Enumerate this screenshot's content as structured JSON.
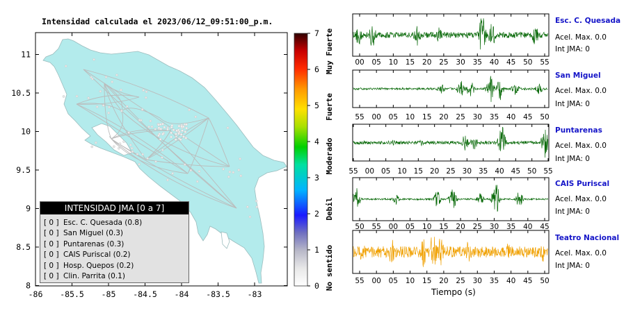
{
  "map": {
    "title": "Intensidad calculada el 2023/06/12_09:51:00_p.m.",
    "x_ticks": [
      "-86",
      "-85.5",
      "-85",
      "-84.5",
      "-84",
      "-83.5",
      "-83"
    ],
    "y_ticks": [
      "11",
      "10.5",
      "10",
      "9.5",
      "9",
      "8.5",
      "8"
    ],
    "land_color": "#b3ebec",
    "road_color": "#bbbbbb"
  },
  "colorbar": {
    "ticks": [
      "0",
      "1",
      "2",
      "3",
      "4",
      "5",
      "6",
      "7"
    ],
    "labels": [
      "No sentido",
      "Debil",
      "Moderado",
      "Fuerte",
      "Muy Fuerte"
    ]
  },
  "legend": {
    "title": "INTENSIDAD JMA [0 a 7]",
    "rows": [
      {
        "level": "[ 0 ]",
        "text": "Esc. C. Quesada (0.8)"
      },
      {
        "level": "[ 0 ]",
        "text": "San Miguel (0.3)"
      },
      {
        "level": "[ 0 ]",
        "text": "Puntarenas (0.3)"
      },
      {
        "level": "[ 0 ]",
        "text": "CAIS Puriscal (0.2)"
      },
      {
        "level": "[ 0 ]",
        "text": "Hosp. Quepos (0.2)"
      },
      {
        "level": "[ 0 ]",
        "text": "Clin. Parrita (0.1)"
      }
    ]
  },
  "stations": [
    {
      "name": "Esc. C. Quesada",
      "accel": "Acel. Max. 0.0",
      "jma": "Int JMA: 0",
      "ticks": [
        "00",
        "05",
        "10",
        "15",
        "20",
        "25",
        "30",
        "35",
        "40",
        "45",
        "50",
        "55"
      ],
      "color": "#0a6a0a"
    },
    {
      "name": "San Miguel",
      "accel": "Acel. Max. 0.0",
      "jma": "Int JMA: 0",
      "ticks": [
        "55",
        "00",
        "05",
        "10",
        "15",
        "20",
        "25",
        "30",
        "35",
        "40",
        "45",
        "50"
      ],
      "color": "#0a6a0a"
    },
    {
      "name": "Puntarenas",
      "accel": "Acel. Max. 0.0",
      "jma": "Int JMA: 0",
      "ticks": [
        "55",
        "00",
        "05",
        "10",
        "15",
        "20",
        "25",
        "30",
        "35",
        "40",
        "45",
        "50",
        "55"
      ],
      "color": "#0a6a0a"
    },
    {
      "name": "CAIS Puriscal",
      "accel": "Acel. Max. 0.0",
      "jma": "Int JMA: 0",
      "ticks": [
        "50",
        "55",
        "00",
        "05",
        "10",
        "15",
        "20",
        "25",
        "30",
        "35",
        "40",
        "45"
      ],
      "color": "#0a6a0a"
    },
    {
      "name": "Teatro Nacional",
      "accel": "Acel. Max. 0.0",
      "jma": "Int JMA: 0",
      "ticks": [
        "55",
        "00",
        "05",
        "10",
        "15",
        "20",
        "25",
        "30",
        "35",
        "40",
        "45",
        "50"
      ],
      "color": "#f0a000"
    }
  ],
  "xaxis_title": "Tiempo (s)"
}
